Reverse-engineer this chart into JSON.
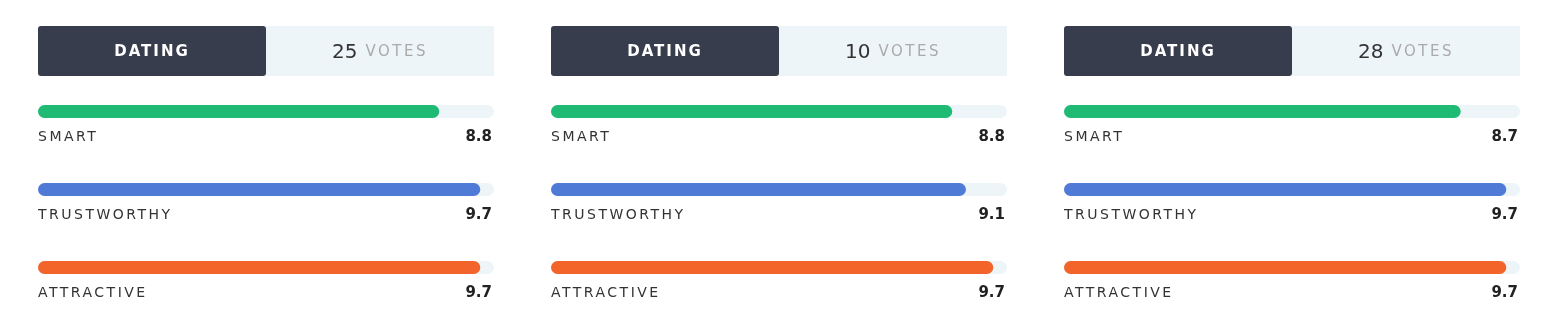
{
  "chart_data": [
    {
      "type": "bar",
      "orientation": "horizontal",
      "title": "DATING",
      "subtitle": "25 VOTES",
      "categories": [
        "SMART",
        "TRUSTWORTHY",
        "ATTRACTIVE"
      ],
      "values": [
        8.8,
        9.7,
        9.7
      ],
      "colors": [
        "#1fba74",
        "#4f7bd6",
        "#f2642a"
      ],
      "xlim": [
        0,
        10
      ],
      "data_labels": true
    },
    {
      "type": "bar",
      "orientation": "horizontal",
      "title": "DATING",
      "subtitle": "10 VOTES",
      "categories": [
        "SMART",
        "TRUSTWORTHY",
        "ATTRACTIVE"
      ],
      "values": [
        8.8,
        9.1,
        9.7
      ],
      "colors": [
        "#1fba74",
        "#4f7bd6",
        "#f2642a"
      ],
      "xlim": [
        0,
        10
      ],
      "data_labels": true
    },
    {
      "type": "bar",
      "orientation": "horizontal",
      "title": "DATING",
      "subtitle": "28 VOTES",
      "categories": [
        "SMART",
        "TRUSTWORTHY",
        "ATTRACTIVE"
      ],
      "values": [
        8.7,
        9.7,
        9.7
      ],
      "colors": [
        "#1fba74",
        "#4f7bd6",
        "#f2642a"
      ],
      "xlim": [
        0,
        10
      ],
      "data_labels": true
    }
  ]
}
